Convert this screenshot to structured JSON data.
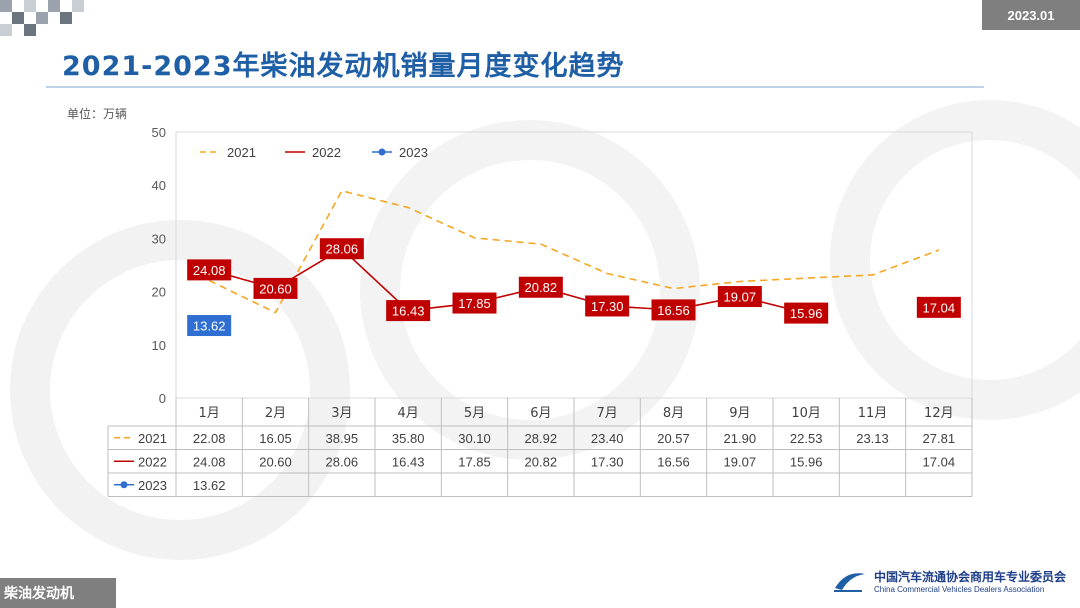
{
  "header": {
    "date_badge": "2023.01",
    "title": "2021-2023年柴油发动机销量月度变化趋势",
    "unit": "单位：万辆"
  },
  "footer": {
    "tag": "柴油发动机",
    "org_cn": "中国汽车流通协会商用车专业委员会",
    "org_en": "China Commercial Vehicles Dealers Association"
  },
  "colors": {
    "s2021": "#f5a623",
    "s2022": "#c00000",
    "s2023": "#2f6fd1",
    "accent": "#1f5fa6"
  },
  "chart_data": {
    "type": "line",
    "categories": [
      "1月",
      "2月",
      "3月",
      "4月",
      "5月",
      "6月",
      "7月",
      "8月",
      "9月",
      "10月",
      "11月",
      "12月"
    ],
    "ylim": [
      0,
      50
    ],
    "yticks": [
      0,
      10,
      20,
      30,
      40,
      50
    ],
    "legend_position": "top-left",
    "series": [
      {
        "name": "2021",
        "style": "dashed",
        "show_labels": false,
        "values": [
          22.08,
          16.05,
          38.95,
          35.8,
          30.1,
          28.92,
          23.4,
          20.57,
          21.9,
          22.53,
          23.13,
          27.81
        ],
        "table": [
          "22.08",
          "16.05",
          "38.95",
          "35.80",
          "30.10",
          "28.92",
          "23.40",
          "20.57",
          "21.90",
          "22.53",
          "23.13",
          "27.81"
        ]
      },
      {
        "name": "2022",
        "style": "solid",
        "show_labels": true,
        "values": [
          24.08,
          20.6,
          28.06,
          16.43,
          17.85,
          20.82,
          17.3,
          16.56,
          19.07,
          15.96,
          null,
          17.04
        ],
        "table": [
          "24.08",
          "20.60",
          "28.06",
          "16.43",
          "17.85",
          "20.82",
          "17.30",
          "16.56",
          "19.07",
          "15.96",
          "",
          "17.04"
        ]
      },
      {
        "name": "2023",
        "style": "marker",
        "show_labels": true,
        "values": [
          13.62,
          null,
          null,
          null,
          null,
          null,
          null,
          null,
          null,
          null,
          null,
          null
        ],
        "table": [
          "13.62",
          "",
          "",
          "",
          "",
          "",
          "",
          "",
          "",
          "",
          "",
          ""
        ]
      }
    ]
  }
}
